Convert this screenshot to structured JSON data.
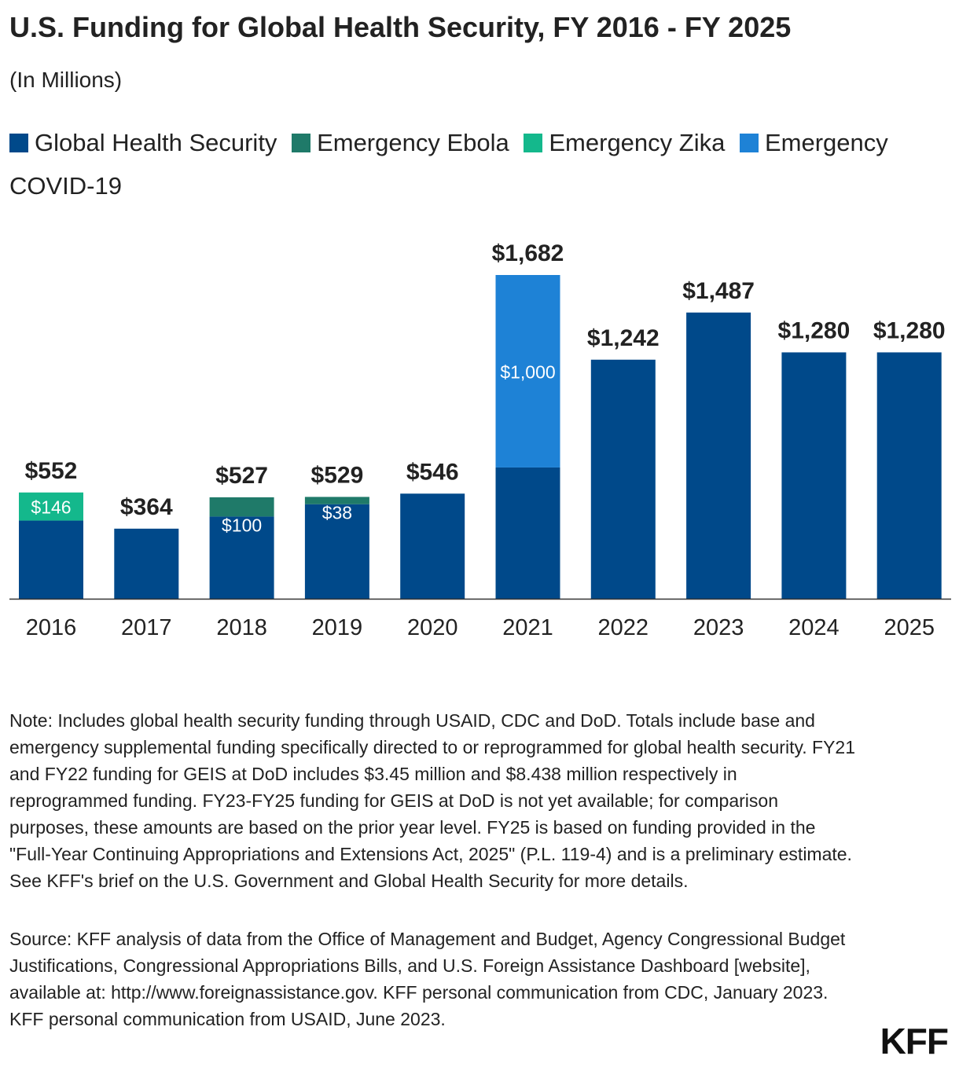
{
  "title": "U.S. Funding for Global Health Security, FY 2016 - FY 2025",
  "subtitle": "(In Millions)",
  "chart_data": {
    "type": "bar",
    "stacked": true,
    "title": "U.S. Funding for Global Health Security, FY 2016 - FY 2025",
    "subtitle": "(In Millions)",
    "categories": [
      "2016",
      "2017",
      "2018",
      "2019",
      "2020",
      "2021",
      "2022",
      "2023",
      "2024",
      "2025"
    ],
    "series": [
      {
        "name": "Global Health Security",
        "color": "#00498a",
        "values": [
          406,
          364,
          427,
          491,
          546,
          682,
          1242,
          1487,
          1280,
          1280
        ]
      },
      {
        "name": "Emergency Ebola",
        "color": "#1f7a69",
        "values": [
          0,
          0,
          100,
          38,
          0,
          0,
          0,
          0,
          0,
          0
        ]
      },
      {
        "name": "Emergency Zika",
        "color": "#14b88c",
        "values": [
          146,
          0,
          0,
          0,
          0,
          0,
          0,
          0,
          0,
          0
        ]
      },
      {
        "name": "Emergency COVID-19",
        "color": "#1e82d6",
        "values": [
          0,
          0,
          0,
          0,
          0,
          1000,
          0,
          0,
          0,
          0
        ]
      }
    ],
    "segment_labels": [
      {
        "category": "2016",
        "text": "$146"
      },
      {
        "category": "2018",
        "text": "$100"
      },
      {
        "category": "2019",
        "text": "$38"
      },
      {
        "category": "2021",
        "text": "$1,000"
      }
    ],
    "total_labels": [
      "$552",
      "$364",
      "$527",
      "$529",
      "$546",
      "$1,682",
      "$1,242",
      "$1,487",
      "$1,280",
      "$1,280"
    ],
    "ylim": [
      0,
      1682
    ],
    "xlabel": "",
    "ylabel": "",
    "grid": false,
    "legend": "top"
  },
  "note": "Note: Includes global health security funding through USAID, CDC and DoD. Totals include base and emergency supplemental funding specifically directed to or reprogrammed for global health security. FY21 and FY22 funding for GEIS at DoD includes $3.45 million and $8.438 million respectively in reprogrammed funding. FY23-FY25 funding for GEIS at DoD is not yet available; for comparison purposes, these amounts are based on the prior year level. FY25 is based on funding provided in the \"Full-Year Continuing Appropriations and Extensions Act, 2025\" (P.L. 119-4) and is a preliminary estimate. See KFF's brief on the U.S. Government and Global Health Security for more details.",
  "source": "Source: KFF analysis of data from the Office of Management and Budget, Agency Congressional Budget Justifications, Congressional Appropriations Bills, and U.S. Foreign Assistance Dashboard [website], available at: http://www.foreignassistance.gov. KFF personal communication from CDC, January 2023. KFF personal communication from USAID, June 2023.",
  "logo": "KFF"
}
